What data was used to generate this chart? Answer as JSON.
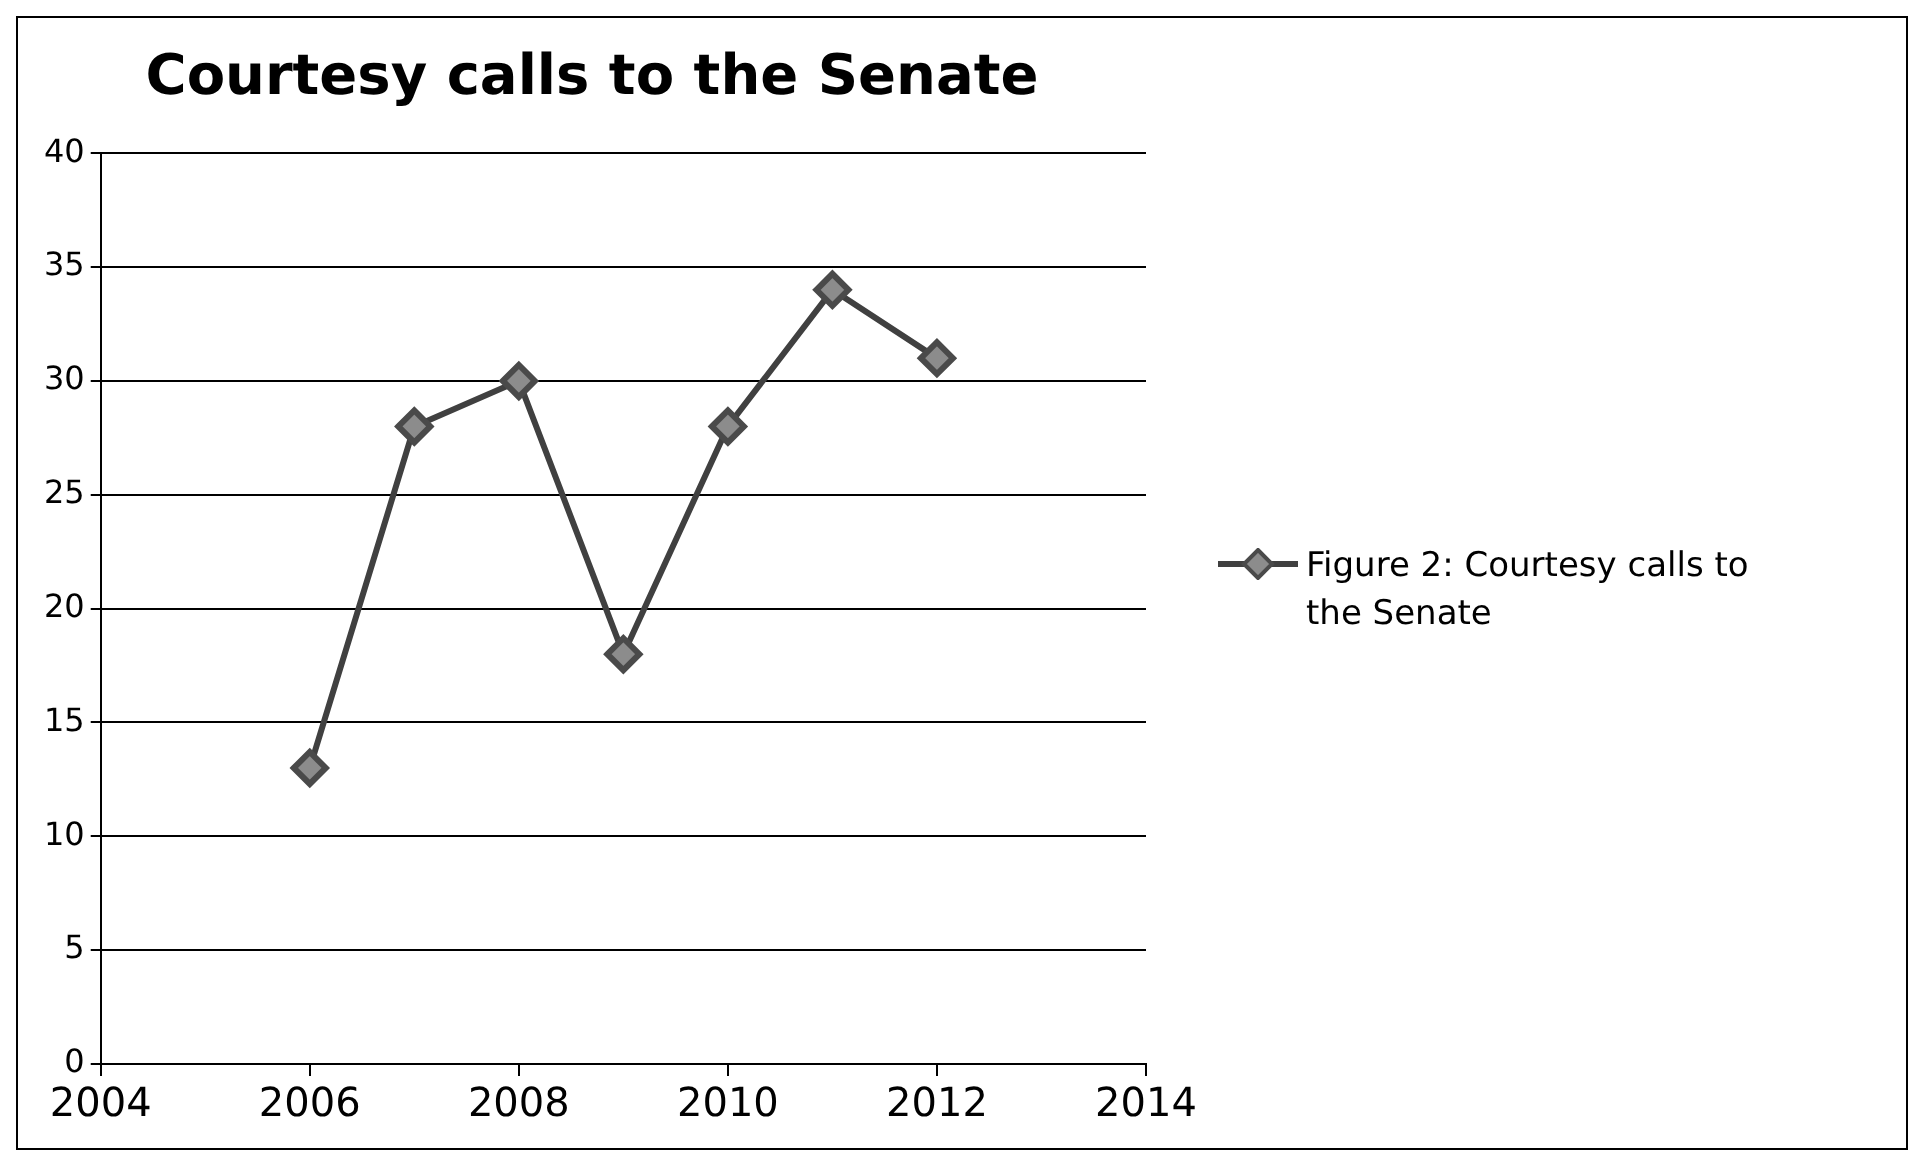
{
  "chart_data": {
    "type": "line",
    "title": "Courtesy calls to the Senate",
    "x": [
      2006,
      2007,
      2008,
      2009,
      2010,
      2011,
      2012
    ],
    "series": [
      {
        "name": "Figure 2: Courtesy calls to the Senate",
        "color": "#8c8c8c",
        "values": [
          13,
          28,
          30,
          18,
          28,
          34,
          31
        ]
      }
    ],
    "xlim": [
      2004,
      2014
    ],
    "xticks": [
      2004,
      2006,
      2008,
      2010,
      2012,
      2014
    ],
    "ylim": [
      0,
      40
    ],
    "yticks": [
      0,
      5,
      10,
      15,
      20,
      25,
      30,
      35,
      40
    ],
    "grid": "y",
    "legend": "right",
    "marker": "diamond",
    "line_style": "solid"
  }
}
